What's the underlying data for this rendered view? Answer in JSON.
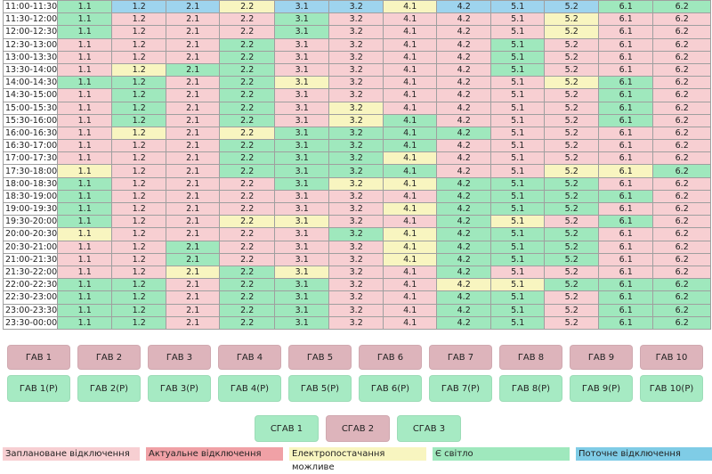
{
  "schedule": {
    "groups": [
      "1.1",
      "1.2",
      "2.1",
      "2.2",
      "3.1",
      "3.2",
      "4.1",
      "4.2",
      "5.1",
      "5.2",
      "6.1",
      "6.2"
    ],
    "rows": [
      {
        "time": "11:00-11:30",
        "states": "occyccycccoo"
      },
      {
        "time": "11:30-12:00",
        "states": "opppoppppypp"
      },
      {
        "time": "12:00-12:30",
        "states": "opppoppppypp"
      },
      {
        "time": "12:30-13:00",
        "states": "pppoppppoppp"
      },
      {
        "time": "13:00-13:30",
        "states": "pppoppppoppp"
      },
      {
        "time": "13:30-14:00",
        "states": "pyooppppoppp"
      },
      {
        "time": "14:00-14:30",
        "states": "oopoyppppyop"
      },
      {
        "time": "14:30-15:00",
        "states": "popoppppppop"
      },
      {
        "time": "15:00-15:30",
        "states": "popopyppppop"
      },
      {
        "time": "15:30-16:00",
        "states": "popopyopppop"
      },
      {
        "time": "16:00-16:30",
        "states": "pypyoooopppp"
      },
      {
        "time": "16:30-17:00",
        "states": "pppooooppppp"
      },
      {
        "time": "17:00-17:30",
        "states": "pppoooyppppp"
      },
      {
        "time": "17:30-18:00",
        "states": "yppooooppyyo"
      },
      {
        "time": "18:00-18:30",
        "states": "opppoyyooopp"
      },
      {
        "time": "18:30-19:00",
        "states": "oppppppoooop"
      },
      {
        "time": "19:00-19:30",
        "states": "opppppyooopp"
      },
      {
        "time": "19:30-20:00",
        "states": "oppyyppoypop"
      },
      {
        "time": "20:00-20:30",
        "states": "yppppoyooopp"
      },
      {
        "time": "20:30-21:00",
        "states": "ppopppyooopp"
      },
      {
        "time": "21:00-21:30",
        "states": "ppopppyooopp"
      },
      {
        "time": "21:30-22:00",
        "states": "ppyoyppopppp"
      },
      {
        "time": "22:00-22:30",
        "states": "oopooppyyooo"
      },
      {
        "time": "22:30-23:00",
        "states": "oopooppoopoo"
      },
      {
        "time": "23:00-23:30",
        "states": "oopooppoopoo"
      },
      {
        "time": "23:30-00:00",
        "states": "oopooppoopoo"
      }
    ]
  },
  "gav_buttons": [
    "ГАВ 1",
    "ГАВ 2",
    "ГАВ 3",
    "ГАВ 4",
    "ГАВ 5",
    "ГАВ 6",
    "ГАВ 7",
    "ГАВ 8",
    "ГАВ 9",
    "ГАВ 10"
  ],
  "gavr_buttons": [
    "ГАВ 1(Р)",
    "ГАВ 2(Р)",
    "ГАВ 3(Р)",
    "ГАВ 4(Р)",
    "ГАВ 5(Р)",
    "ГАВ 6(Р)",
    "ГАВ 7(Р)",
    "ГАВ 8(Р)",
    "ГАВ 9(Р)",
    "ГАВ 10(Р)"
  ],
  "sgav_buttons": [
    {
      "label": "СГАВ 1",
      "state": "on"
    },
    {
      "label": "СГАВ 2",
      "state": "off"
    },
    {
      "label": "СГАВ 3",
      "state": "on"
    }
  ],
  "legend": [
    {
      "label": "Заплановане відключення",
      "color": "#f7cfd2"
    },
    {
      "label": "Актуальне відключення",
      "color": "#f0a1a6"
    },
    {
      "label": "Електропостачання можливе",
      "color": "#f8f5c0"
    },
    {
      "label": "Є світло",
      "color": "#9fe8bd"
    },
    {
      "label": "Поточне відключення",
      "color": "#7fcce6"
    }
  ]
}
